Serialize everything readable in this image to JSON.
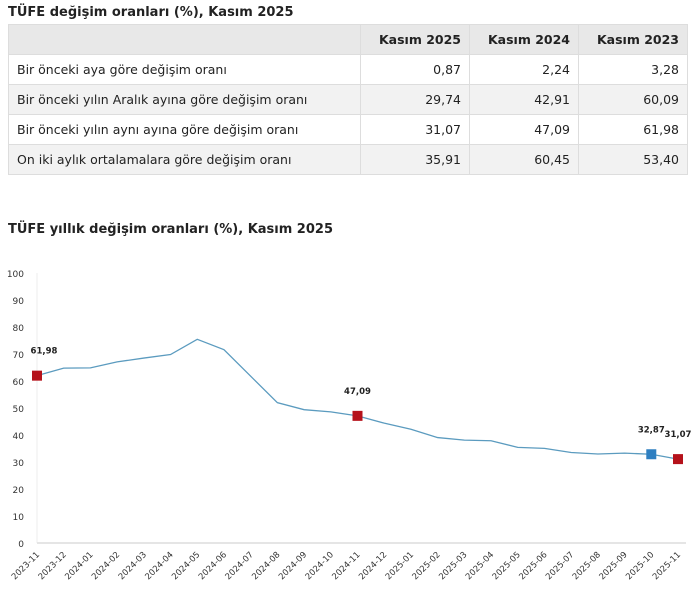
{
  "table": {
    "title": "TÜFE değişim oranları (%), Kasım 2025",
    "columns": [
      "",
      "Kasım 2025",
      "Kasım 2024",
      "Kasım 2023"
    ],
    "rows": [
      {
        "label": "Bir önceki aya göre değişim oranı",
        "values": [
          "0,87",
          "2,24",
          "3,28"
        ]
      },
      {
        "label": "Bir önceki yılın Aralık ayına göre değişim oranı",
        "values": [
          "29,74",
          "42,91",
          "60,09"
        ]
      },
      {
        "label": "Bir önceki yılın aynı ayına göre değişim oranı",
        "values": [
          "31,07",
          "47,09",
          "61,98"
        ]
      },
      {
        "label": "On iki aylık ortalamalara göre değişim oranı",
        "values": [
          "35,91",
          "60,45",
          "53,40"
        ]
      }
    ]
  },
  "chart_data": {
    "type": "line",
    "title": "TÜFE yıllık değişim oranları (%), Kasım 2025",
    "categories": [
      "2023-11",
      "2023-12",
      "2024-01",
      "2024-02",
      "2024-03",
      "2024-04",
      "2024-05",
      "2024-06",
      "2024-07",
      "2024-08",
      "2024-09",
      "2024-10",
      "2024-11",
      "2024-12",
      "2025-01",
      "2025-02",
      "2025-03",
      "2025-04",
      "2025-05",
      "2025-06",
      "2025-07",
      "2025-08",
      "2025-09",
      "2025-10",
      "2025-11"
    ],
    "values": [
      61.98,
      64.77,
      64.86,
      67.07,
      68.5,
      69.8,
      75.45,
      71.6,
      61.78,
      51.97,
      49.38,
      48.58,
      47.09,
      44.38,
      42.12,
      39.05,
      38.1,
      37.86,
      35.41,
      35.05,
      33.52,
      32.95,
      33.29,
      32.87,
      31.07
    ],
    "ylim": [
      0,
      100
    ],
    "yticks": [
      "0",
      "10",
      "20",
      "30",
      "40",
      "50",
      "60",
      "70",
      "80",
      "90",
      "100"
    ],
    "line_color": "#5b9bbf",
    "markers": [
      {
        "index": 0,
        "label": "61,98",
        "color": "#b5121b"
      },
      {
        "index": 12,
        "label": "47,09",
        "color": "#b5121b"
      },
      {
        "index": 23,
        "label": "32,87",
        "color": "#2e7fc1"
      },
      {
        "index": 24,
        "label": "31,07",
        "color": "#b5121b"
      }
    ],
    "grid": false
  }
}
